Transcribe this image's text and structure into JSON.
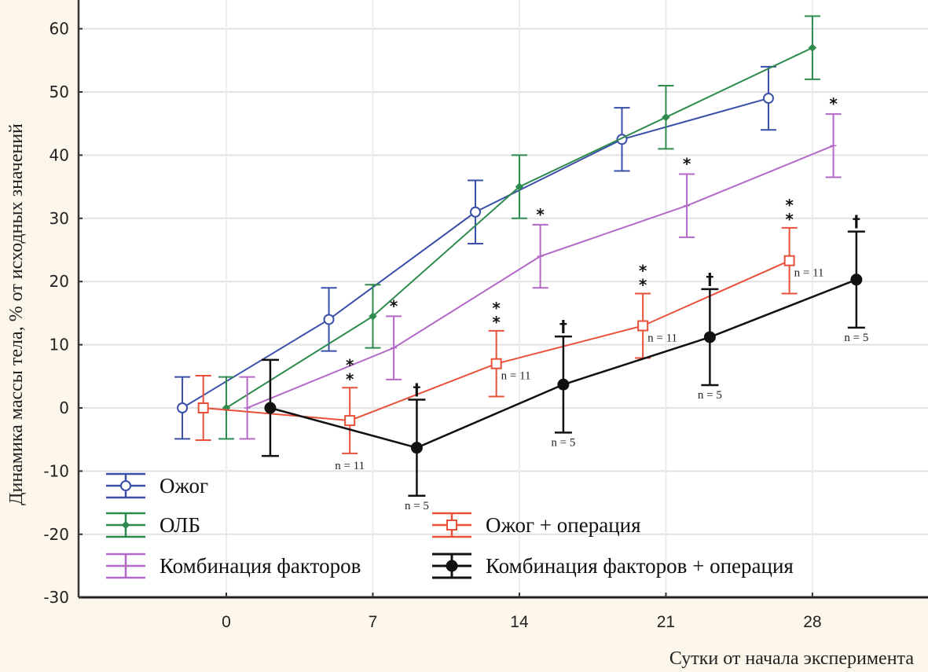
{
  "chart_data": {
    "type": "line",
    "title": "",
    "xlabel": "Сутки от начала эксперимента",
    "ylabel": "Динамика массы тела, % от исходных значений",
    "xlim": [
      -5.5,
      33
    ],
    "ylim": [
      -30,
      60
    ],
    "x_ticks": [
      0,
      7,
      14,
      21,
      28
    ],
    "x_tick_labels": [
      "0",
      "7",
      "14",
      "21",
      "28"
    ],
    "y_ticks": [
      -30,
      -20,
      -10,
      0,
      10,
      20,
      30,
      40,
      50,
      60
    ],
    "y_tick_labels": [
      "-30",
      "-20",
      "-10",
      "0",
      "10",
      "20",
      "30",
      "40",
      "50",
      "60"
    ],
    "grid": true,
    "error_bars": true,
    "series": [
      {
        "name": "Ожог",
        "color": "#3a4fa8",
        "marker": "circle-open",
        "x": [
          -2.1,
          4.9,
          11.9,
          18.9,
          25.9
        ],
        "values": [
          0,
          14,
          31,
          42.5,
          49
        ],
        "error": [
          4.9,
          5,
          5,
          5,
          5
        ],
        "annotations": []
      },
      {
        "name": "ОЛБ",
        "color": "#2e8b4e",
        "marker": "diamond-filled",
        "x": [
          0,
          7,
          14,
          21,
          28
        ],
        "values": [
          0,
          14.5,
          35,
          46,
          57
        ],
        "error": [
          4.9,
          5,
          5,
          5,
          5
        ],
        "annotations": []
      },
      {
        "name": "Комбинация факторов",
        "color": "#b368c8",
        "marker": "plus",
        "x": [
          1,
          8,
          15,
          22,
          29
        ],
        "values": [
          0,
          9.5,
          24,
          32,
          41.5
        ],
        "error": [
          4.9,
          5,
          5,
          5,
          5
        ],
        "annotations": [
          "",
          "*",
          "*",
          "*",
          "*"
        ]
      },
      {
        "name": "Ожог + операция",
        "color": "#e8503a",
        "marker": "square-open",
        "x": [
          -1.1,
          5.9,
          12.9,
          19.9,
          26.9
        ],
        "values": [
          0,
          -2,
          7,
          13,
          23.3
        ],
        "error": [
          5.1,
          5.2,
          5.2,
          5.1,
          5.2
        ],
        "annotations": [
          "",
          "**",
          "**",
          "**",
          "**"
        ],
        "n_labels": [
          "",
          "n = 11",
          "n = 11",
          "n = 11",
          "n = 11"
        ]
      },
      {
        "name": "Комбинация факторов + операция",
        "color": "#111111",
        "marker": "circle-filled",
        "x": [
          2.1,
          9.1,
          16.1,
          23.1,
          30.1
        ],
        "values": [
          0,
          -6.3,
          3.7,
          11.2,
          20.3
        ],
        "error": [
          7.6,
          7.6,
          7.6,
          7.6,
          7.6
        ],
        "annotations": [
          "",
          "†",
          "†",
          "†",
          "†"
        ],
        "n_labels": [
          "",
          "n = 5",
          "n = 5",
          "n = 5",
          "n = 5"
        ]
      }
    ],
    "legend": {
      "placement": "bottom-left",
      "columns": [
        [
          "Ожог",
          "ОЛБ",
          "Комбинация факторов"
        ],
        [
          "Ожог + операция",
          "Комбинация факторов + операция"
        ]
      ]
    }
  }
}
